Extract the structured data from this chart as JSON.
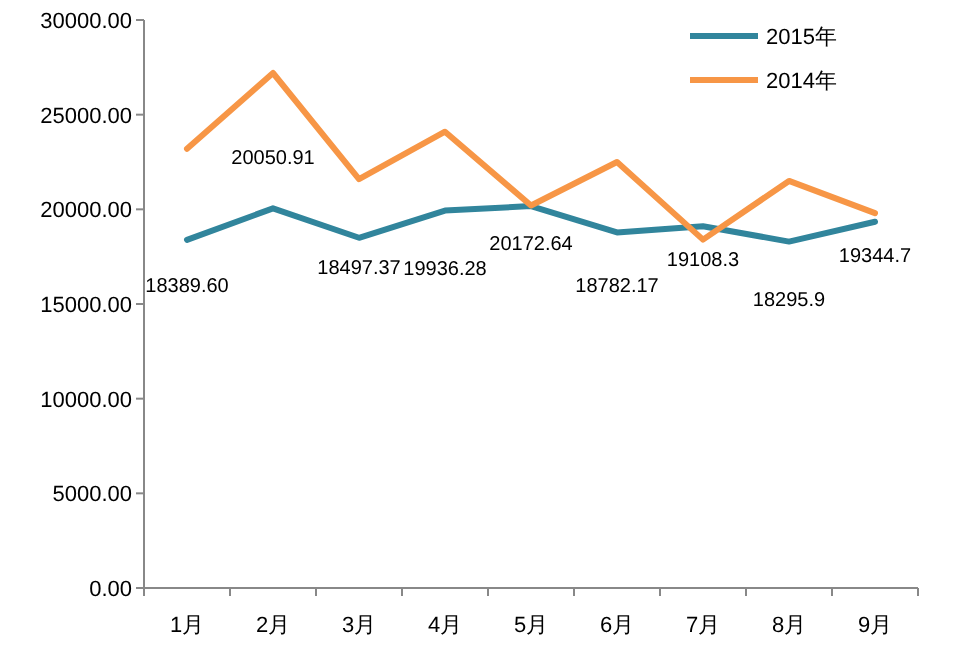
{
  "chart_data": {
    "type": "line",
    "categories": [
      "1月",
      "2月",
      "3月",
      "4月",
      "5月",
      "6月",
      "7月",
      "8月",
      "9月"
    ],
    "series": [
      {
        "name": "2015年",
        "color": "#31859c",
        "values": [
          18389.6,
          20050.91,
          18497.37,
          19936.28,
          20172.64,
          18782.17,
          19108.3,
          18295.9,
          19344.7
        ],
        "value_labels": [
          "18389.60",
          "20050.91",
          "18497.37",
          "19936.28",
          "20172.64",
          "18782.17",
          "19108.3",
          "18295.9",
          "19344.7"
        ]
      },
      {
        "name": "2014年",
        "color": "#f79646",
        "values": [
          23200,
          27200,
          21600,
          24100,
          20200,
          22500,
          18400,
          21500,
          19800
        ]
      }
    ],
    "ylim": [
      0,
      30000
    ],
    "yticks": [
      {
        "value": 0,
        "label": "0.00"
      },
      {
        "value": 5000,
        "label": "5000.00"
      },
      {
        "value": 10000,
        "label": "10000.00"
      },
      {
        "value": 15000,
        "label": "15000.00"
      },
      {
        "value": 20000,
        "label": "20000.00"
      },
      {
        "value": 25000,
        "label": "25000.00"
      },
      {
        "value": 30000,
        "label": "30000.00"
      }
    ],
    "grid": false,
    "legend": "top right",
    "marker": "none",
    "line_style": "solid"
  }
}
